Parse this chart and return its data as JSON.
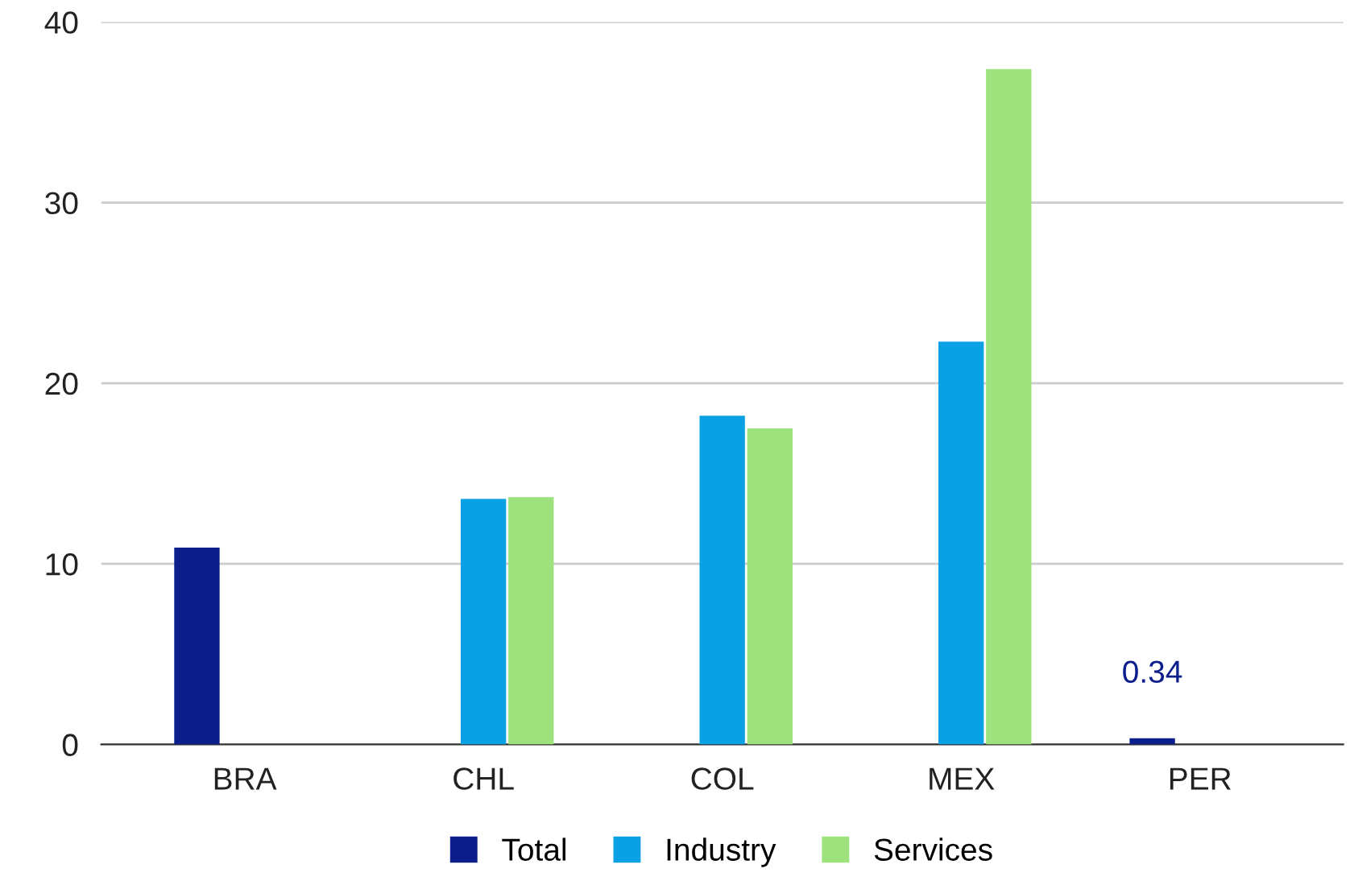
{
  "chart_data": {
    "type": "bar",
    "categories": [
      "BRA",
      "CHL",
      "COL",
      "MEX",
      "PER"
    ],
    "series": [
      {
        "name": "Total",
        "color": "#0c1e8c",
        "values": [
          10.9,
          null,
          null,
          null,
          0.34
        ],
        "value_labels": [
          null,
          null,
          null,
          null,
          "0.34"
        ]
      },
      {
        "name": "Industry",
        "color": "#0aa1e4",
        "values": [
          null,
          13.6,
          18.2,
          22.3,
          null
        ]
      },
      {
        "name": "Services",
        "color": "#9de27c",
        "values": [
          null,
          13.7,
          17.5,
          37.4,
          null
        ]
      }
    ],
    "ylim": [
      0,
      40
    ],
    "yticks": [
      0,
      10,
      20,
      30,
      40
    ],
    "grid": "y",
    "legend": "bottom"
  }
}
